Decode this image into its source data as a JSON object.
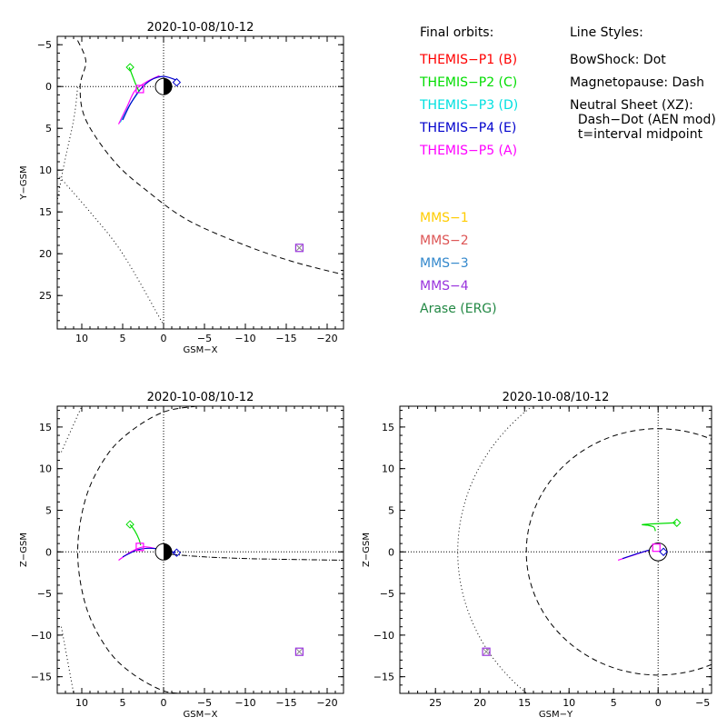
{
  "legend": {
    "orbits_title": "Final orbits:",
    "orbits": [
      {
        "label": "THEMIS−P1 (B)",
        "color": "#ff0000"
      },
      {
        "label": "THEMIS−P2 (C)",
        "color": "#00dd00"
      },
      {
        "label": "THEMIS−P3 (D)",
        "color": "#00e0e0"
      },
      {
        "label": "THEMIS−P4 (E)",
        "color": "#0000cc"
      },
      {
        "label": "THEMIS−P5 (A)",
        "color": "#ff00ff"
      }
    ],
    "styles_title": "Line Styles:",
    "styles": [
      "BowShock: Dot",
      "Magnetopause: Dash",
      "Neutral Sheet (XZ):",
      "  Dash−Dot (AEN mod)",
      "  t=interval midpoint"
    ],
    "missions": [
      {
        "label": "MMS−1",
        "color": "#ffcc00"
      },
      {
        "label": "MMS−2",
        "color": "#dd5555"
      },
      {
        "label": "MMS−3",
        "color": "#3388cc"
      },
      {
        "label": "MMS−4",
        "color": "#9933dd"
      },
      {
        "label": "Arase (ERG)",
        "color": "#228844"
      }
    ]
  },
  "chart_data": [
    {
      "type": "scatter",
      "panel": "xy",
      "title": "2020-10-08/10-12",
      "xlabel": "GSM−X",
      "ylabel": "Y−GSM",
      "xlim": [
        13,
        -22
      ],
      "ylim": [
        -6,
        29
      ],
      "xticks": [
        10,
        5,
        0,
        -5,
        -10,
        -15,
        -20
      ],
      "yticks": [
        -5,
        0,
        5,
        10,
        15,
        20,
        25
      ],
      "xtick_labels": [
        "10",
        "5",
        "0",
        "−5",
        "−10",
        "−15",
        "−20"
      ],
      "ytick_labels": [
        "−5",
        "0",
        "5",
        "10",
        "15",
        "20",
        "25"
      ],
      "grid": "dotted zero lines",
      "earth": true,
      "bow_shock": [
        [
          15,
          25
        ],
        [
          12.5,
          11
        ],
        [
          11,
          4
        ],
        [
          10.5,
          0
        ]
      ],
      "bow_shock_lower": [
        [
          13,
          10.5
        ],
        [
          9,
          15
        ],
        [
          5,
          20
        ],
        [
          0,
          28.5
        ]
      ],
      "magnetopause": [
        [
          10.5,
          -5.5
        ],
        [
          9.5,
          -3
        ],
        [
          10.2,
          0
        ],
        [
          9.5,
          4
        ],
        [
          6,
          9
        ],
        [
          2,
          12.5
        ],
        [
          -3,
          16
        ],
        [
          -10,
          19
        ],
        [
          -16,
          21
        ],
        [
          -22,
          22.5
        ]
      ],
      "orbit_p5": [
        [
          5.5,
          4.5
        ],
        [
          4.5,
          2.5
        ],
        [
          3.5,
          0.5
        ],
        [
          2,
          -0.6
        ],
        [
          0.5,
          -1.3
        ]
      ],
      "orbit_p4": [
        [
          5,
          4
        ],
        [
          4,
          2
        ],
        [
          2.8,
          0.3
        ],
        [
          1.5,
          -0.8
        ],
        [
          0,
          -1.2
        ],
        [
          -1.5,
          -0.8
        ]
      ],
      "orbit_p3": [
        [
          5.3,
          4.3
        ],
        [
          4.2,
          2.3
        ],
        [
          3,
          0.6
        ]
      ],
      "orbit_p2": [
        [
          4.2,
          -2.3
        ],
        [
          3.5,
          -0.5
        ],
        [
          3,
          0.6
        ]
      ],
      "markers": [
        {
          "series": "THEMIS−P2 (C)",
          "x": 4.1,
          "y": -2.3,
          "shape": "diamond"
        },
        {
          "series": "THEMIS−P5 (A)",
          "x": 2.9,
          "y": 0.3,
          "shape": "square"
        },
        {
          "series": "THEMIS−P4 (E)",
          "x": -1.6,
          "y": -0.5,
          "shape": "diamond"
        },
        {
          "series": "MMS",
          "x": -16.6,
          "y": 19.3,
          "shape": "square"
        }
      ]
    },
    {
      "type": "scatter",
      "panel": "xz",
      "title": "2020-10-08/10-12",
      "xlabel": "GSM−X",
      "ylabel": "Z−GSM",
      "xlim": [
        13,
        -22
      ],
      "ylim": [
        -17,
        17.5
      ],
      "xticks": [
        10,
        5,
        0,
        -5,
        -10,
        -15,
        -20
      ],
      "yticks": [
        -15,
        -10,
        -5,
        0,
        5,
        10,
        15
      ],
      "xtick_labels": [
        "10",
        "5",
        "0",
        "−5",
        "−10",
        "−15",
        "−20"
      ],
      "ytick_labels": [
        "−15",
        "−10",
        "−5",
        "0",
        "5",
        "10",
        "15"
      ],
      "grid": "dotted zero lines",
      "earth": true,
      "bow_shock_upper": [
        [
          12.5,
          12
        ],
        [
          10,
          17.5
        ]
      ],
      "bow_shock_lower": [
        [
          12.5,
          -9
        ],
        [
          11,
          -17
        ]
      ],
      "magnetopause": [
        [
          -4,
          17.5
        ],
        [
          0,
          16.8
        ],
        [
          4,
          14.5
        ],
        [
          7,
          11.5
        ],
        [
          9.5,
          6.5
        ],
        [
          10.5,
          0
        ],
        [
          9.5,
          -6.5
        ],
        [
          7,
          -11.5
        ],
        [
          4,
          -14.5
        ],
        [
          0,
          -16.7
        ],
        [
          -3,
          -17
        ]
      ],
      "neutral_sheet": [
        [
          -1,
          -0.3
        ],
        [
          -5,
          -0.6
        ],
        [
          -10,
          -0.8
        ],
        [
          -15,
          -0.9
        ],
        [
          -22,
          -1
        ]
      ],
      "orbit_p5": [
        [
          5.5,
          -1
        ],
        [
          4,
          0
        ],
        [
          2.5,
          0.6
        ],
        [
          1,
          0.4
        ]
      ],
      "orbit_p4": [
        [
          5,
          -0.6
        ],
        [
          3,
          0.3
        ],
        [
          1,
          0.4
        ],
        [
          -1.5,
          -0.1
        ]
      ],
      "orbit_p2": [
        [
          4.1,
          3.3
        ],
        [
          3.5,
          2.5
        ],
        [
          3,
          1.5
        ],
        [
          2.8,
          0.8
        ]
      ],
      "markers": [
        {
          "series": "THEMIS−P2 (C)",
          "x": 4.1,
          "y": 3.3,
          "shape": "diamond"
        },
        {
          "series": "THEMIS−P5 (A)",
          "x": 2.9,
          "y": 0.6,
          "shape": "square"
        },
        {
          "series": "THEMIS−P4 (E)",
          "x": -1.6,
          "y": -0.1,
          "shape": "diamond"
        },
        {
          "series": "MMS",
          "x": -16.6,
          "y": -12,
          "shape": "square"
        }
      ]
    },
    {
      "type": "scatter",
      "panel": "yz",
      "title": "2020-10-08/10-12",
      "xlabel": "GSM−Y",
      "ylabel": "Z−GSM",
      "xlim": [
        29,
        -6
      ],
      "ylim": [
        -17,
        17.5
      ],
      "xticks": [
        25,
        20,
        15,
        10,
        5,
        0,
        -5
      ],
      "yticks": [
        -15,
        -10,
        -5,
        0,
        5,
        10,
        15
      ],
      "xtick_labels": [
        "25",
        "20",
        "15",
        "10",
        "5",
        "0",
        "−5"
      ],
      "ytick_labels": [
        "−15",
        "−10",
        "−5",
        "0",
        "5",
        "10",
        "15"
      ],
      "grid": "dotted zero lines",
      "earth": true,
      "bow_shock_radius": 22.5,
      "magnetopause_radius": 14.8,
      "orbit_p5": [
        [
          4.5,
          -1
        ],
        [
          2.5,
          -0.3
        ],
        [
          1,
          0.2
        ],
        [
          0,
          0.4
        ],
        [
          -0.8,
          0
        ]
      ],
      "orbit_p4": [
        [
          4,
          -0.8
        ],
        [
          2,
          -0.1
        ],
        [
          0.5,
          0.3
        ],
        [
          -1,
          0
        ]
      ],
      "orbit_p2": [
        [
          0.3,
          2.5
        ],
        [
          0.5,
          3
        ],
        [
          1.2,
          3.2
        ],
        [
          1.6,
          3.3
        ],
        [
          -2,
          3.5
        ]
      ],
      "markers": [
        {
          "series": "THEMIS−P2 (C)",
          "x": -2.1,
          "y": 3.5,
          "shape": "diamond"
        },
        {
          "series": "THEMIS−P5 (A)",
          "x": 0.2,
          "y": 0.5,
          "shape": "square"
        },
        {
          "series": "THEMIS−P4 (E)",
          "x": -0.6,
          "y": 0,
          "shape": "diamond"
        },
        {
          "series": "MMS",
          "x": 19.3,
          "y": -12,
          "shape": "square"
        }
      ]
    }
  ]
}
